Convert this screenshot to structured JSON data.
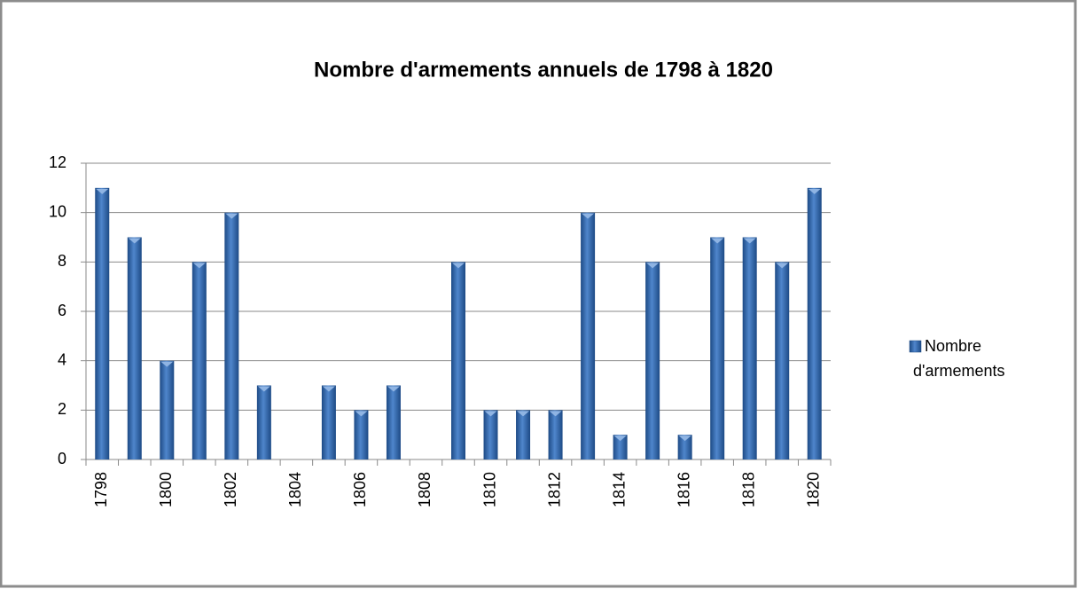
{
  "chart_data": {
    "type": "bar",
    "title": "Nombre d'armements annuels de 1798 à 1820",
    "categories": [
      "1798",
      null,
      "1800",
      null,
      "1802",
      null,
      "1804",
      null,
      "1806",
      null,
      "1808",
      null,
      "1810",
      null,
      "1812",
      null,
      "1814",
      null,
      "1816",
      null,
      "1818",
      null,
      "1820"
    ],
    "series": [
      {
        "name": "Nombre d'armements",
        "color": "#2e64a8",
        "values": [
          11,
          9,
          4,
          8,
          10,
          3,
          0,
          3,
          2,
          3,
          0,
          8,
          2,
          2,
          2,
          10,
          1,
          8,
          1,
          9,
          9,
          8,
          11
        ]
      }
    ],
    "ylim": [
      0,
      12
    ],
    "yticks": [
      0,
      2,
      4,
      6,
      8,
      10,
      12
    ],
    "grid": true,
    "legend": "right"
  }
}
